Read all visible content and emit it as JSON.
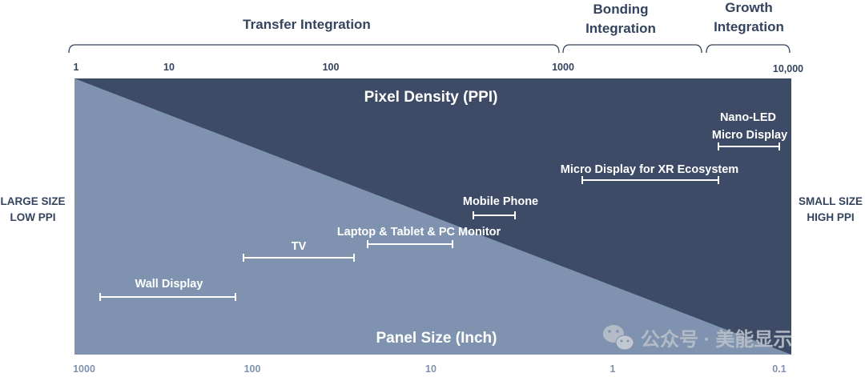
{
  "integration_regions": [
    {
      "label_lines": [
        "Transfer Integration"
      ]
    },
    {
      "label_lines": [
        "Bonding",
        "Integration"
      ]
    },
    {
      "label_lines": [
        "Growth",
        "Integration"
      ]
    }
  ],
  "top_axis": {
    "title": "Pixel Density (PPI)",
    "ticks": [
      "1",
      "10",
      "100",
      "1000",
      "10,000"
    ]
  },
  "bottom_axis": {
    "title": "Panel Size (Inch)",
    "ticks": [
      "1000",
      "100",
      "10",
      "1",
      "0.1"
    ]
  },
  "left_label": [
    "LARGE SIZE",
    "LOW PPI"
  ],
  "right_label": [
    "SMALL SIZE",
    "HIGH PPI"
  ],
  "applications": [
    {
      "label_lines": [
        "Wall Display"
      ]
    },
    {
      "label_lines": [
        "TV"
      ]
    },
    {
      "label_lines": [
        "Laptop & Tablet & PC Monitor"
      ]
    },
    {
      "label_lines": [
        "Mobile Phone"
      ]
    },
    {
      "label_lines": [
        "Micro Display for XR Ecosystem"
      ]
    },
    {
      "label_lines": [
        "Nano-LED",
        "Micro Display"
      ]
    }
  ],
  "watermark": {
    "icon": "wechat-icon",
    "text": "公众号 · 美能显示"
  },
  "colors": {
    "dark": "#3e4b66",
    "light": "#7f93b0",
    "text": "#34445e",
    "tick_bottom": "#7e92b0",
    "bar": "#ffffff"
  }
}
